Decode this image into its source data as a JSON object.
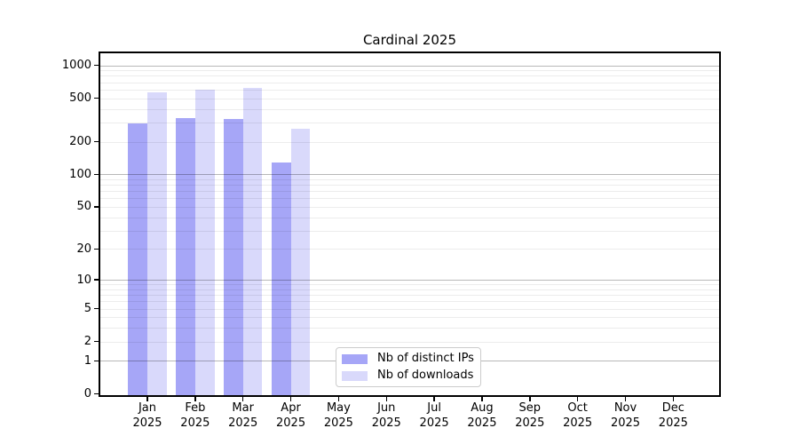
{
  "chart_data": {
    "type": "bar",
    "title": "Cardinal 2025",
    "x_year": "2025",
    "categories": [
      "Jan",
      "Feb",
      "Mar",
      "Apr",
      "May",
      "Jun",
      "Jul",
      "Aug",
      "Sep",
      "Oct",
      "Nov",
      "Dec"
    ],
    "y_scale": "log10(1+x)",
    "y_ticks": [
      0,
      1,
      2,
      5,
      10,
      20,
      50,
      100,
      200,
      500,
      1000
    ],
    "y_major_gridlines": [
      1,
      10,
      100,
      1000
    ],
    "y_minor_gridlines": [
      2,
      3,
      4,
      5,
      6,
      7,
      8,
      9,
      20,
      30,
      40,
      50,
      60,
      70,
      80,
      90,
      200,
      300,
      400,
      500,
      600,
      700,
      800,
      900
    ],
    "ylim": [
      0,
      1300
    ],
    "grid": true,
    "legend_position": "bottom-center-inside",
    "series": [
      {
        "name": "Nb of distinct IPs",
        "color": "#a6a6f7",
        "values": [
          295,
          330,
          320,
          128,
          0,
          0,
          0,
          0,
          0,
          0,
          0,
          0
        ]
      },
      {
        "name": "Nb of downloads",
        "color": "#d9d9fb",
        "values": [
          570,
          595,
          620,
          263,
          0,
          0,
          0,
          0,
          0,
          0,
          0,
          0
        ]
      }
    ]
  }
}
